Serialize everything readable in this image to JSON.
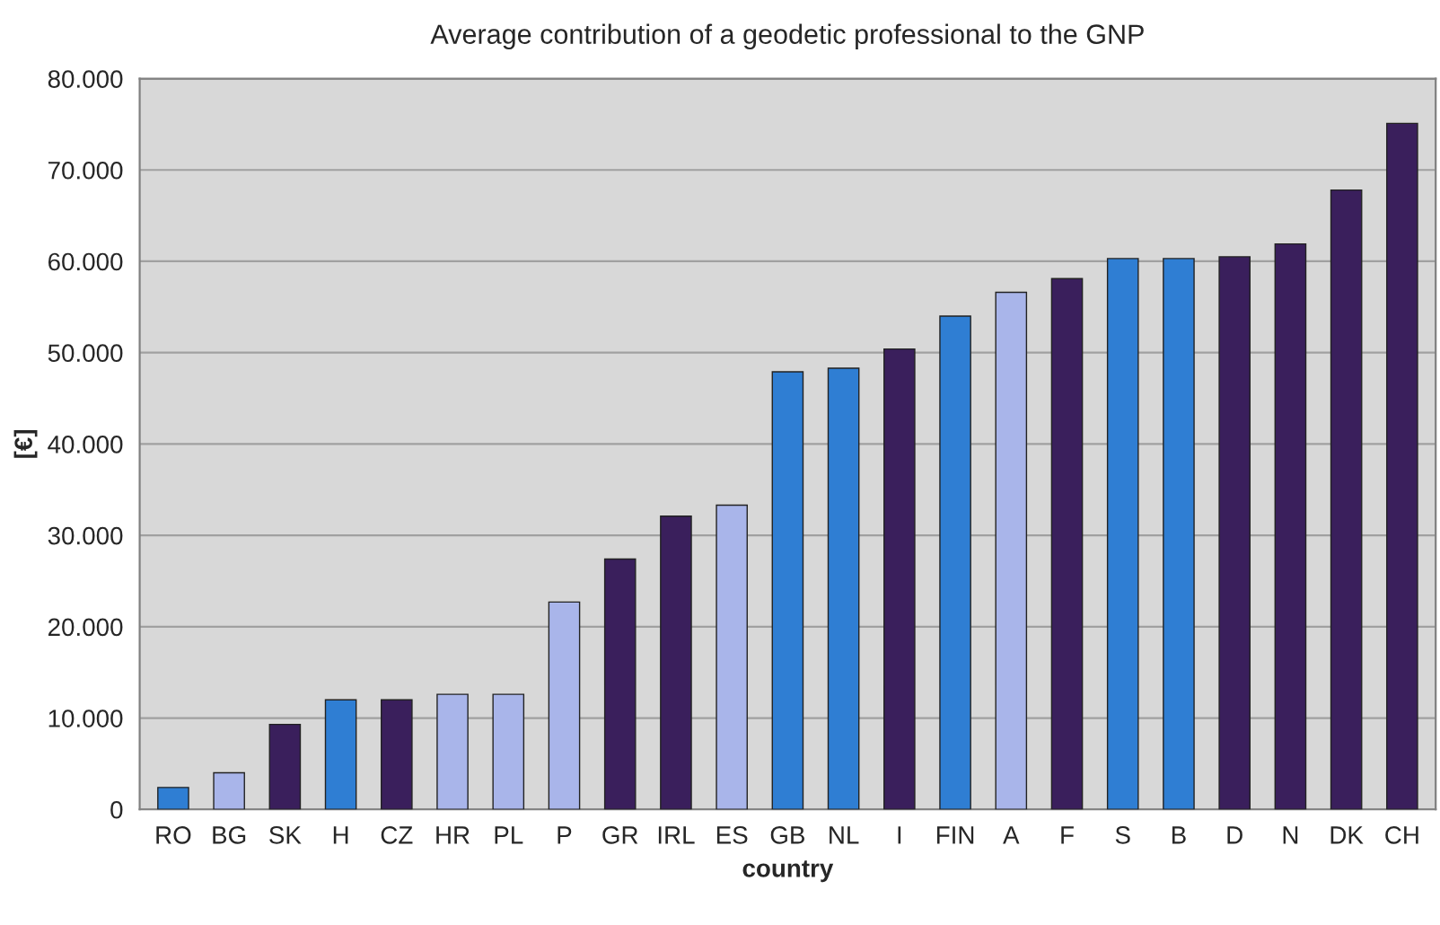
{
  "chart_data": {
    "type": "bar",
    "title": "Average contribution of a geodetic professional to the GNP",
    "xlabel": "country",
    "ylabel": "[€]",
    "categories": [
      "RO",
      "BG",
      "SK",
      "H",
      "CZ",
      "HR",
      "PL",
      "P",
      "GR",
      "IRL",
      "ES",
      "GB",
      "NL",
      "I",
      "FIN",
      "A",
      "F",
      "S",
      "B",
      "D",
      "N",
      "DK",
      "CH"
    ],
    "values": [
      2400,
      4000,
      9300,
      12000,
      12000,
      12600,
      12600,
      22700,
      27400,
      32100,
      33300,
      47900,
      48300,
      50400,
      54000,
      56600,
      58100,
      60300,
      60300,
      60500,
      61900,
      67800,
      75100
    ],
    "colors": [
      "#2f7ed3",
      "#a9b5ea",
      "#3a1f5c",
      "#2f7ed3",
      "#3a1f5c",
      "#a9b5ea",
      "#a9b5ea",
      "#a9b5ea",
      "#3a1f5c",
      "#3a1f5c",
      "#a9b5ea",
      "#2f7ed3",
      "#2f7ed3",
      "#3a1f5c",
      "#2f7ed3",
      "#a9b5ea",
      "#3a1f5c",
      "#2f7ed3",
      "#2f7ed3",
      "#3a1f5c",
      "#3a1f5c",
      "#3a1f5c",
      "#3a1f5c"
    ],
    "ylim": [
      0,
      80000
    ],
    "yticks": [
      {
        "value": 0,
        "label": "0"
      },
      {
        "value": 10000,
        "label": "10.000"
      },
      {
        "value": 20000,
        "label": "20.000"
      },
      {
        "value": 30000,
        "label": "30.000"
      },
      {
        "value": 40000,
        "label": "40.000"
      },
      {
        "value": 50000,
        "label": "50.000"
      },
      {
        "value": 60000,
        "label": "60.000"
      },
      {
        "value": 70000,
        "label": "70.000"
      },
      {
        "value": 80000,
        "label": "80.000"
      }
    ],
    "grid": "y",
    "legend": false
  }
}
